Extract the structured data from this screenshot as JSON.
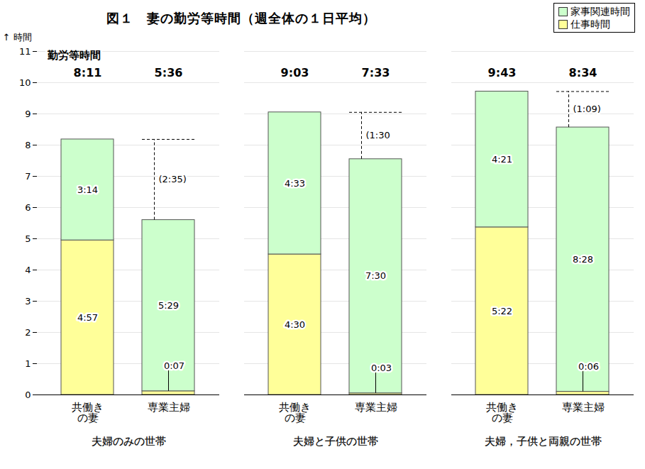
{
  "chart_data": {
    "type": "bar",
    "stacked": true,
    "title": "図１　妻の勤労等時間（週全体の１日平均）",
    "y_label": "時間",
    "totals_label": "勤労等時間",
    "categories": [
      "共働き\nの妻",
      "専業主婦",
      "共働き\nの妻",
      "専業主婦",
      "共働き\nの妻",
      "専業主婦"
    ],
    "groups": [
      "夫婦のみの世帯",
      "夫婦のみの世帯",
      "夫婦と子供の世帯",
      "夫婦と子供の世帯",
      "夫婦，子供と両親の世帯",
      "夫婦，子供と両親の世帯"
    ],
    "series": [
      {
        "name": "仕事時間",
        "color": "#ffff99",
        "values": [
          4.95,
          0.1167,
          4.5,
          0.05,
          5.3667,
          0.1
        ],
        "value_labels": [
          "4:57",
          "0:07",
          "4:30",
          "0:03",
          "5:22",
          "0:06"
        ]
      },
      {
        "name": "家事関連時間",
        "color": "#ccffcc",
        "values": [
          3.2333,
          5.4833,
          4.55,
          7.5,
          4.35,
          8.4667
        ],
        "value_labels": [
          "3:14",
          "5:29",
          "4:33",
          "7:30",
          "4:21",
          "8:28"
        ]
      }
    ],
    "totals": [
      8.1833,
      5.6,
      9.05,
      7.55,
      9.7167,
      8.5667
    ],
    "total_labels": [
      "8:11",
      "5:36",
      "9:03",
      "7:33",
      "9:43",
      "8:34"
    ],
    "differences": [
      null,
      2.5833,
      null,
      1.5,
      null,
      1.15
    ],
    "difference_labels": [
      null,
      "(2:35)",
      null,
      "(1:30",
      null,
      "(1:09)"
    ],
    "ylim": [
      0,
      11
    ],
    "yticks": [
      0,
      1,
      2,
      3,
      4,
      5,
      6,
      7,
      8,
      9,
      10,
      11
    ],
    "grid": true,
    "data_labels": true,
    "legend": "top-right"
  }
}
